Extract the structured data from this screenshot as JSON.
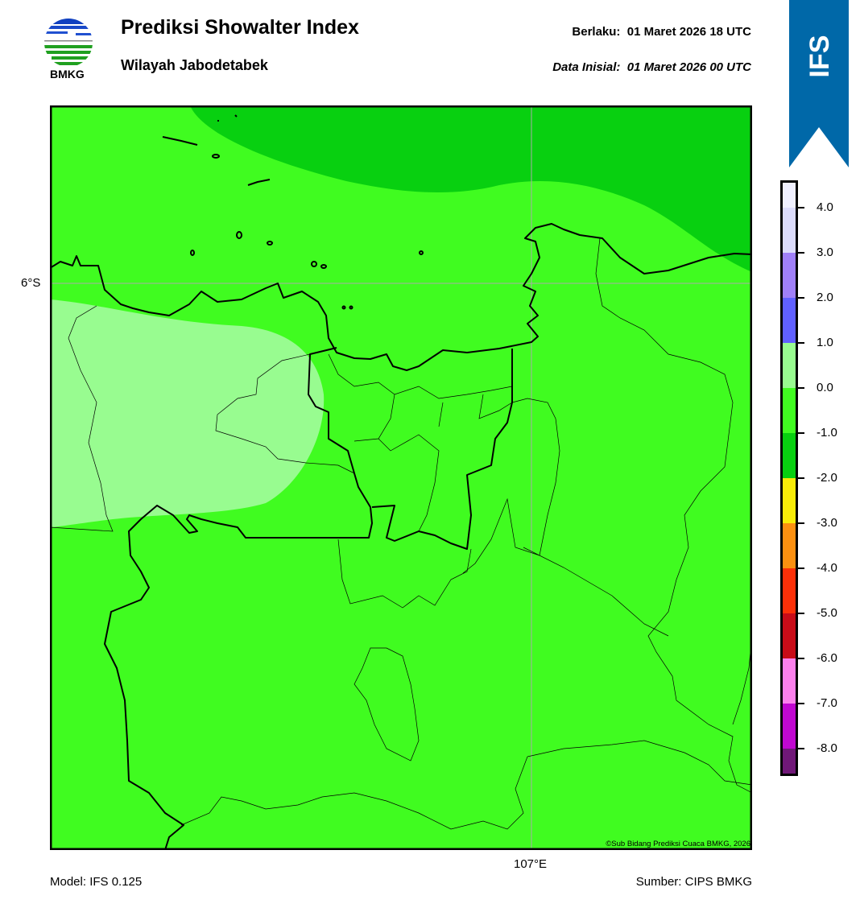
{
  "header": {
    "title": "Prediksi Showalter Index",
    "subtitle": "Wilayah Jabodetabek",
    "valid_label": "Berlaku:  01 Maret 2026 18 UTC",
    "init_label": "Data Inisial:  01 Maret 2026 00 UTC",
    "logo_text": "BMKG",
    "model_badge": "IFS",
    "badge_color": "#0068a8"
  },
  "map": {
    "lat_label": "6°S",
    "lon_label": "107°E",
    "copyright": "©Sub Bidang Prediksi Cuaca BMKG, 2026",
    "fill_colors": {
      "dominant": "#40fc20",
      "north_sea": "#08d010",
      "west_area": "#98fc90"
    }
  },
  "colorbar": {
    "ticks": [
      "4.0",
      "3.0",
      "2.0",
      "1.0",
      "0.0",
      "-1.0",
      "-2.0",
      "-3.0",
      "-4.0",
      "-5.0",
      "-6.0",
      "-7.0",
      "-8.0"
    ],
    "colors": [
      "#f0f0ff",
      "#dcdcfc",
      "#a080f8",
      "#6060ff",
      "#98fc90",
      "#40fc20",
      "#08d010",
      "#f8ec08",
      "#fc9010",
      "#fc3008",
      "#c80c18",
      "#fc80ec",
      "#c008d0",
      "#701878"
    ]
  },
  "footer": {
    "model": "Model: IFS 0.125",
    "source": "Sumber: CIPS BMKG"
  }
}
